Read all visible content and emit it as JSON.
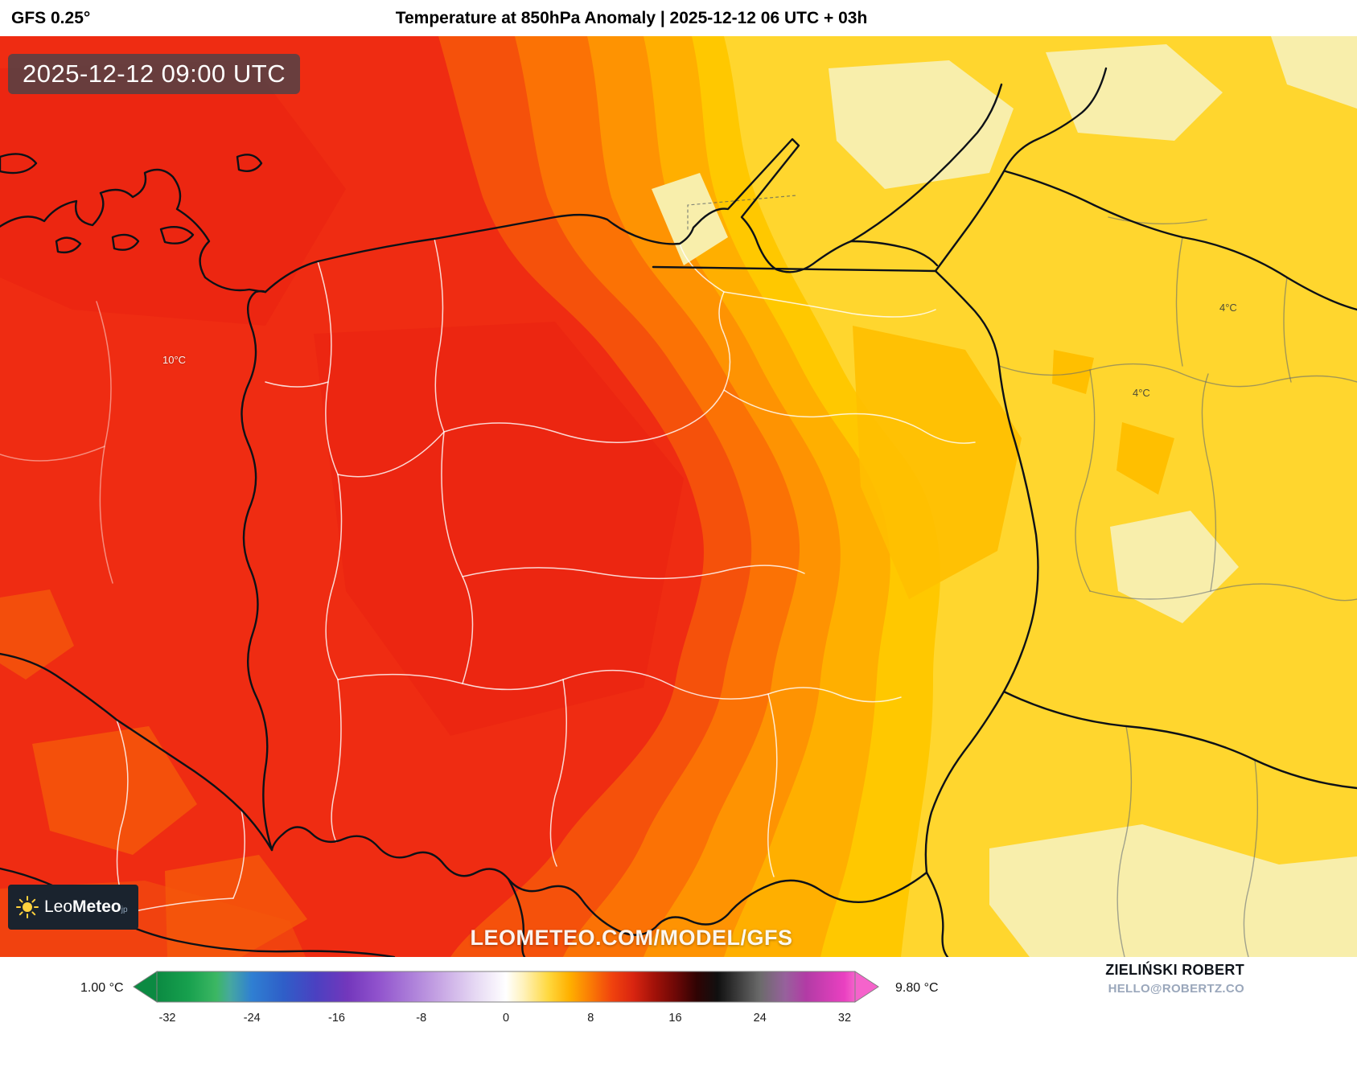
{
  "header": {
    "model_label": "GFS 0.25°",
    "title": "Temperature at 850hPa Anomaly | 2025-12-12 06 UTC + 03h"
  },
  "map": {
    "timestamp": "2025-12-12 09:00 UTC",
    "watermark": "LEOMETEO.COM/MODEL/GFS",
    "logo": {
      "part1": "Leo",
      "part2": "Meteo",
      "suffix": "jp"
    },
    "labels": [
      {
        "text": "10°C"
      },
      {
        "text": "4°C"
      },
      {
        "text": "4°C"
      }
    ],
    "band_colors": {
      "base_yellow": "#ffd62e",
      "pale_yellow": "#f8eeab",
      "amber_patch": "#ffbf00",
      "band_f": "#ffc800",
      "band_e": "#ffaf00",
      "band_d": "#fe9302",
      "band_c": "#fb7205",
      "band_b": "#f5510b",
      "band_a": "#ef2c12",
      "deep_red": "#e92310",
      "orange_patch": "#f4570b"
    }
  },
  "colorbar": {
    "min_label": "1.00 °C",
    "max_label": "9.80 °C",
    "ticks": [
      "-32",
      "-24",
      "-16",
      "-8",
      "0",
      "8",
      "16",
      "24",
      "32"
    ],
    "left_arrow_color": "#0b8a42",
    "right_arrow_color": "#f563cb",
    "stops": [
      {
        "f": 0.0,
        "c": "#0b8a42"
      },
      {
        "f": 0.045,
        "c": "#17a04e"
      },
      {
        "f": 0.085,
        "c": "#3cb763"
      },
      {
        "f": 0.105,
        "c": "#46a8a0"
      },
      {
        "f": 0.136,
        "c": "#2f7fd2"
      },
      {
        "f": 0.182,
        "c": "#2f5ec8"
      },
      {
        "f": 0.227,
        "c": "#4a41c1"
      },
      {
        "f": 0.273,
        "c": "#7337bc"
      },
      {
        "f": 0.318,
        "c": "#9153cd"
      },
      {
        "f": 0.364,
        "c": "#ac7ed9"
      },
      {
        "f": 0.409,
        "c": "#c9a9e5"
      },
      {
        "f": 0.455,
        "c": "#e5d7f3"
      },
      {
        "f": 0.5,
        "c": "#ffffff"
      },
      {
        "f": 0.525,
        "c": "#fff2bb"
      },
      {
        "f": 0.561,
        "c": "#ffd83e"
      },
      {
        "f": 0.591,
        "c": "#ffb000"
      },
      {
        "f": 0.621,
        "c": "#fa7b05"
      },
      {
        "f": 0.652,
        "c": "#f0420e"
      },
      {
        "f": 0.682,
        "c": "#d92510"
      },
      {
        "f": 0.712,
        "c": "#a31209"
      },
      {
        "f": 0.742,
        "c": "#6f0806"
      },
      {
        "f": 0.773,
        "c": "#300303"
      },
      {
        "f": 0.803,
        "c": "#101010"
      },
      {
        "f": 0.864,
        "c": "#6b6b6b"
      },
      {
        "f": 0.9,
        "c": "#97619c"
      },
      {
        "f": 0.93,
        "c": "#b23ba5"
      },
      {
        "f": 0.985,
        "c": "#ea40c1"
      },
      {
        "f": 1.0,
        "c": "#f563cb"
      }
    ]
  },
  "credits": {
    "author": "ZIELIŃSKI ROBERT",
    "contact": "HELLO@ROBERTZ.CO"
  }
}
